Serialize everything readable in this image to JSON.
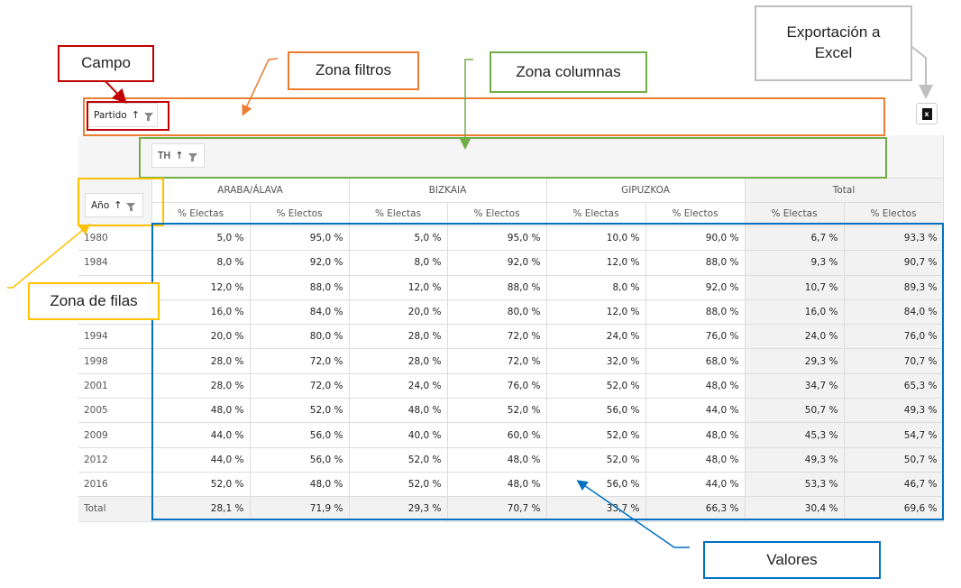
{
  "annotations": {
    "campo": "Campo",
    "zona_filtros": "Zona filtros",
    "zona_columnas": "Zona columnas",
    "zona_filas": "Zona de filas",
    "valores": "Valores",
    "export": "Exportación a Excel"
  },
  "fields": {
    "filter": "Partido",
    "column": "TH",
    "row": "Año",
    "sort_icon": "↑",
    "excel_icon": "x"
  },
  "colors": {
    "campo": "#c00000",
    "filtros": "#ed7d31",
    "columnas": "#70ad47",
    "filas": "#ffc000",
    "valores": "#0070c0",
    "export": "#bfbfbf"
  },
  "table": {
    "groups": [
      "ARABA/ÁLAVA",
      "BIZKAIA",
      "GIPUZKOA",
      "Total"
    ],
    "subheaders": [
      "% Electas",
      "% Electos",
      "% Electas",
      "% Electos",
      "% Electas",
      "% Electos",
      "% Electas",
      "% Electos"
    ],
    "rows": [
      {
        "year": "1980",
        "v": [
          "5,0 %",
          "95,0 %",
          "5,0 %",
          "95,0 %",
          "10,0 %",
          "90,0 %",
          "6,7 %",
          "93,3 %"
        ]
      },
      {
        "year": "1984",
        "v": [
          "8,0 %",
          "92,0 %",
          "8,0 %",
          "92,0 %",
          "12,0 %",
          "88,0 %",
          "9,3 %",
          "90,7 %"
        ]
      },
      {
        "year": "",
        "v": [
          "12,0 %",
          "88,0 %",
          "12,0 %",
          "88,0 %",
          "8,0 %",
          "92,0 %",
          "10,7 %",
          "89,3 %"
        ]
      },
      {
        "year": "",
        "v": [
          "16,0 %",
          "84,0 %",
          "20,0 %",
          "80,0 %",
          "12,0 %",
          "88,0 %",
          "16,0 %",
          "84,0 %"
        ]
      },
      {
        "year": "1994",
        "v": [
          "20,0 %",
          "80,0 %",
          "28,0 %",
          "72,0 %",
          "24,0 %",
          "76,0 %",
          "24,0 %",
          "76,0 %"
        ]
      },
      {
        "year": "1998",
        "v": [
          "28,0 %",
          "72,0 %",
          "28,0 %",
          "72,0 %",
          "32,0 %",
          "68,0 %",
          "29,3 %",
          "70,7 %"
        ]
      },
      {
        "year": "2001",
        "v": [
          "28,0 %",
          "72,0 %",
          "24,0 %",
          "76,0 %",
          "52,0 %",
          "48,0 %",
          "34,7 %",
          "65,3 %"
        ]
      },
      {
        "year": "2005",
        "v": [
          "48,0 %",
          "52,0 %",
          "48,0 %",
          "52,0 %",
          "56,0 %",
          "44,0 %",
          "50,7 %",
          "49,3 %"
        ]
      },
      {
        "year": "2009",
        "v": [
          "44,0 %",
          "56,0 %",
          "40,0 %",
          "60,0 %",
          "52,0 %",
          "48,0 %",
          "45,3 %",
          "54,7 %"
        ]
      },
      {
        "year": "2012",
        "v": [
          "44,0 %",
          "56,0 %",
          "52,0 %",
          "48,0 %",
          "52,0 %",
          "48,0 %",
          "49,3 %",
          "50,7 %"
        ]
      },
      {
        "year": "2016",
        "v": [
          "52,0 %",
          "48,0 %",
          "52,0 %",
          "48,0 %",
          "56,0 %",
          "44,0 %",
          "53,3 %",
          "46,7 %"
        ]
      }
    ],
    "total": {
      "year": "Total",
      "v": [
        "28,1 %",
        "71,9 %",
        "29,3 %",
        "70,7 %",
        "33,7 %",
        "66,3 %",
        "30,4 %",
        "69,6 %"
      ]
    }
  }
}
